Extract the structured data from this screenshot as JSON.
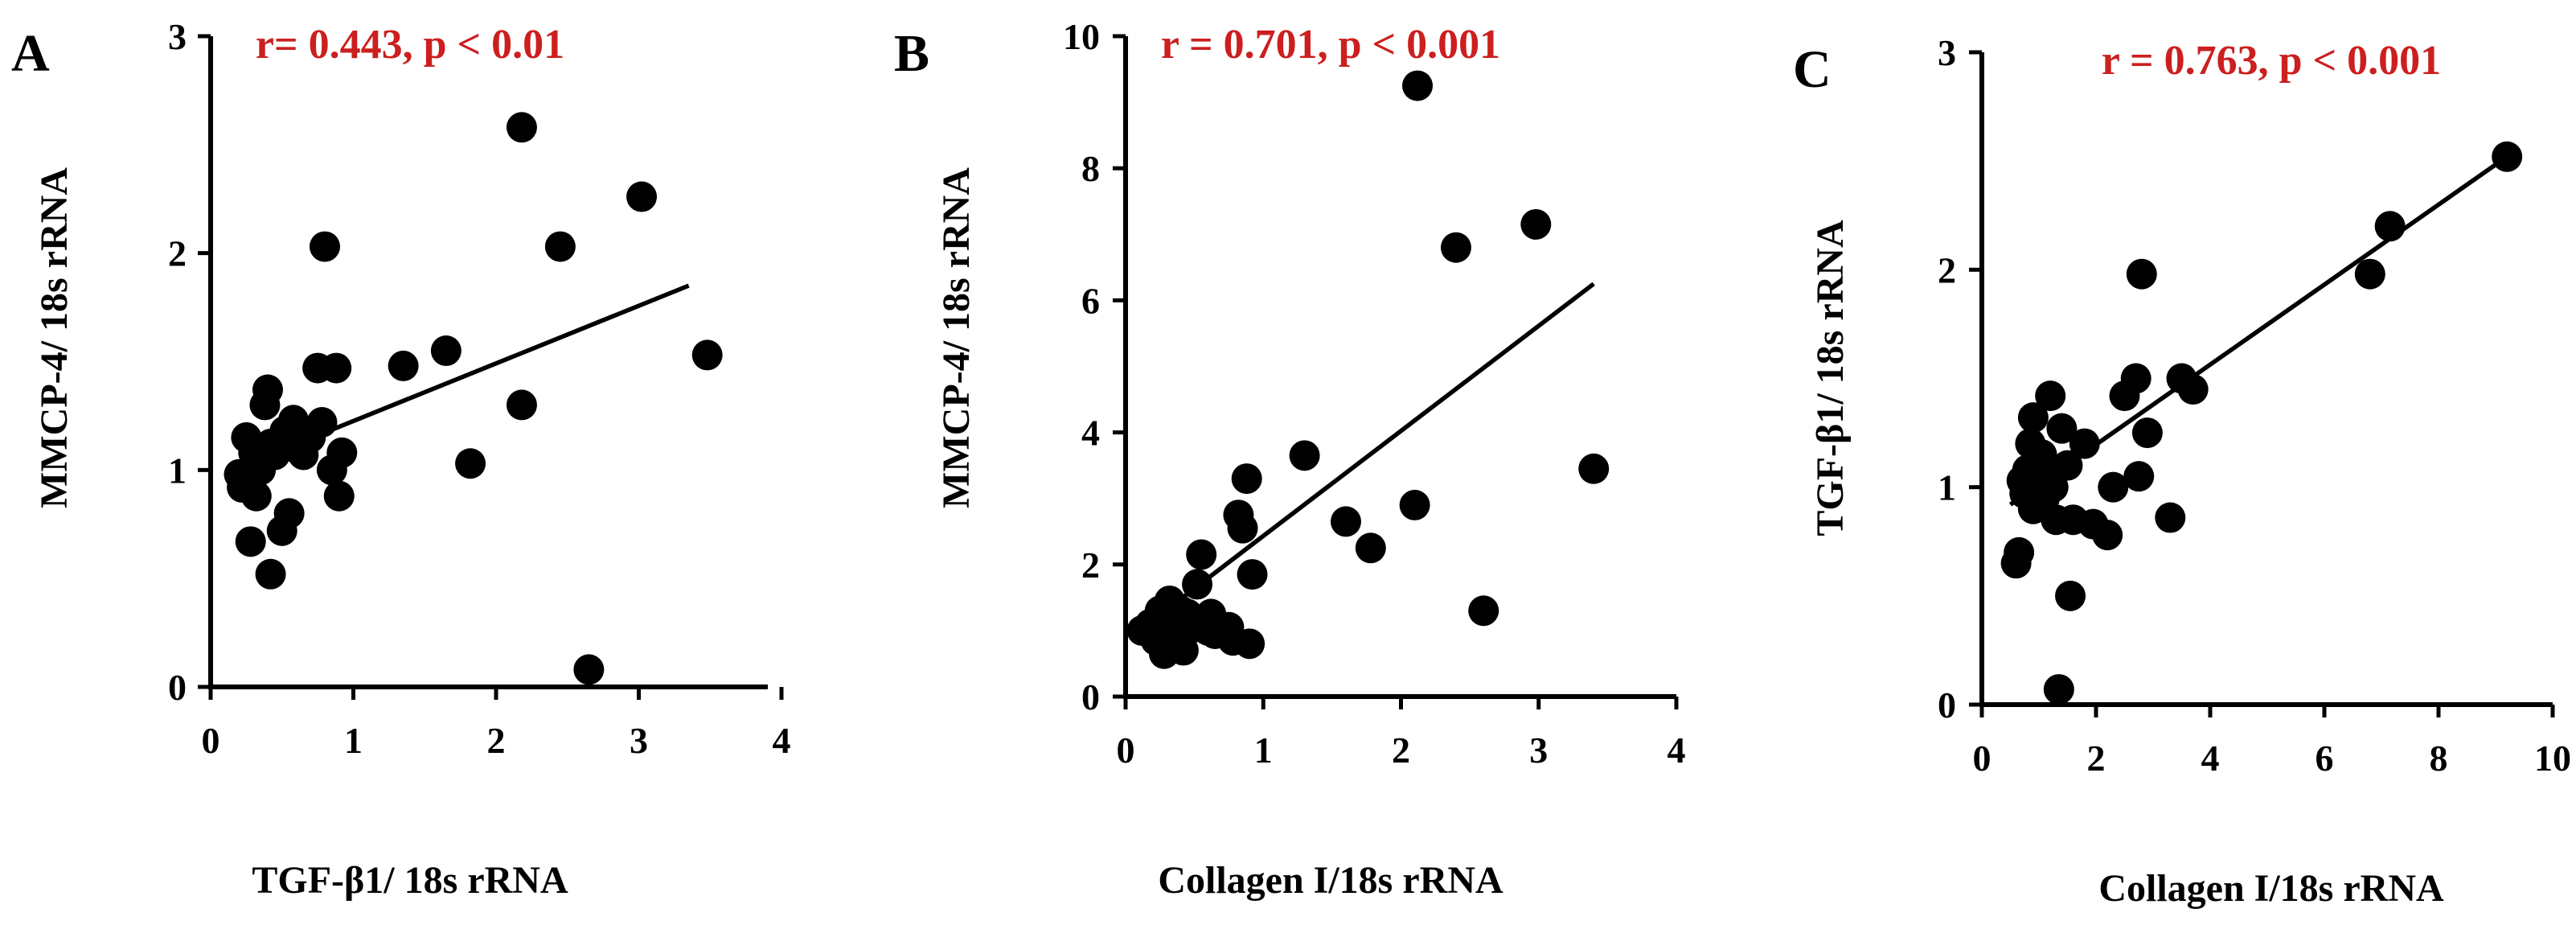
{
  "chart_data": [
    {
      "panel": "A",
      "type": "scatter",
      "stat_text": "r= 0.443, p < 0.01",
      "xlabel": "TGF-β1/ 18s rRNA",
      "ylabel": "MMCP-4/ 18s rRNA",
      "xlim": [
        0,
        4
      ],
      "ylim": [
        0,
        3
      ],
      "xticks": [
        "0",
        "1",
        "2",
        "3",
        "4"
      ],
      "yticks": [
        "0",
        "1",
        "2",
        "3"
      ],
      "xtick_values": [
        0,
        1,
        2,
        3,
        4
      ],
      "ytick_values": [
        0,
        1,
        2,
        3
      ],
      "trendline": [
        [
          0.15,
          1.0
        ],
        [
          3.35,
          1.85
        ]
      ],
      "points": [
        [
          0.2,
          0.98
        ],
        [
          0.22,
          0.92
        ],
        [
          0.25,
          0.96
        ],
        [
          0.25,
          1.15
        ],
        [
          0.28,
          0.67
        ],
        [
          0.3,
          1.08
        ],
        [
          0.32,
          0.88
        ],
        [
          0.35,
          1.0
        ],
        [
          0.38,
          1.3
        ],
        [
          0.4,
          1.37
        ],
        [
          0.42,
          1.12
        ],
        [
          0.42,
          0.52
        ],
        [
          0.45,
          1.07
        ],
        [
          0.5,
          0.72
        ],
        [
          0.52,
          1.18
        ],
        [
          0.55,
          0.8
        ],
        [
          0.58,
          1.23
        ],
        [
          0.6,
          1.1
        ],
        [
          0.65,
          1.07
        ],
        [
          0.7,
          1.15
        ],
        [
          0.75,
          1.47
        ],
        [
          0.78,
          1.22
        ],
        [
          0.8,
          2.03
        ],
        [
          0.85,
          1.0
        ],
        [
          0.88,
          1.47
        ],
        [
          0.9,
          0.88
        ],
        [
          0.92,
          1.08
        ],
        [
          1.35,
          1.48
        ],
        [
          1.65,
          1.55
        ],
        [
          1.82,
          1.03
        ],
        [
          2.18,
          2.58
        ],
        [
          2.18,
          1.3
        ],
        [
          2.45,
          2.03
        ],
        [
          2.65,
          0.08
        ],
        [
          3.02,
          2.26
        ],
        [
          3.48,
          1.53
        ]
      ]
    },
    {
      "panel": "B",
      "type": "scatter",
      "stat_text": "r = 0.701, p < 0.001",
      "xlabel": "Collagen I/18s rRNA",
      "ylabel": "MMCP-4/ 18s rRNA",
      "xlim": [
        0,
        4
      ],
      "ylim": [
        0,
        10
      ],
      "xticks": [
        "0",
        "1",
        "2",
        "3",
        "4"
      ],
      "yticks": [
        "0",
        "2",
        "4",
        "6",
        "8",
        "10"
      ],
      "xtick_values": [
        0,
        1,
        2,
        3,
        4
      ],
      "ytick_values": [
        0,
        2,
        4,
        6,
        8,
        10
      ],
      "trendline": [
        [
          0.1,
          1.0
        ],
        [
          3.4,
          6.25
        ]
      ],
      "points": [
        [
          0.12,
          1.0
        ],
        [
          0.18,
          1.1
        ],
        [
          0.22,
          0.85
        ],
        [
          0.25,
          1.3
        ],
        [
          0.28,
          0.65
        ],
        [
          0.3,
          1.2
        ],
        [
          0.32,
          1.45
        ],
        [
          0.35,
          0.95
        ],
        [
          0.38,
          1.1
        ],
        [
          0.4,
          1.3
        ],
        [
          0.42,
          0.7
        ],
        [
          0.45,
          1.25
        ],
        [
          0.5,
          1.05
        ],
        [
          0.52,
          1.7
        ],
        [
          0.55,
          2.15
        ],
        [
          0.6,
          1.0
        ],
        [
          0.62,
          1.25
        ],
        [
          0.65,
          0.95
        ],
        [
          0.75,
          1.05
        ],
        [
          0.78,
          0.85
        ],
        [
          0.82,
          2.75
        ],
        [
          0.85,
          2.55
        ],
        [
          0.88,
          3.3
        ],
        [
          0.9,
          0.8
        ],
        [
          0.92,
          1.85
        ],
        [
          1.3,
          3.65
        ],
        [
          1.6,
          2.65
        ],
        [
          1.78,
          2.25
        ],
        [
          2.1,
          2.9
        ],
        [
          2.12,
          9.25
        ],
        [
          2.4,
          6.8
        ],
        [
          2.6,
          1.3
        ],
        [
          2.98,
          7.15
        ],
        [
          3.4,
          3.45
        ]
      ]
    },
    {
      "panel": "C",
      "type": "scatter",
      "stat_text": "r = 0.763, p < 0.001",
      "xlabel": "Collagen I/18s rRNA",
      "ylabel": "TGF-β1/ 18s rRNA",
      "xlim": [
        0,
        10
      ],
      "ylim": [
        0,
        3
      ],
      "xticks": [
        "0",
        "2",
        "4",
        "6",
        "8",
        "10"
      ],
      "yticks": [
        "0",
        "1",
        "2",
        "3"
      ],
      "xtick_values": [
        0,
        2,
        4,
        6,
        8,
        10
      ],
      "ytick_values": [
        0,
        1,
        2,
        3
      ],
      "trendline": [
        [
          0.5,
          0.92
        ],
        [
          9.2,
          2.52
        ]
      ],
      "points": [
        [
          0.6,
          0.65
        ],
        [
          0.65,
          0.7
        ],
        [
          0.7,
          1.03
        ],
        [
          0.75,
          0.97
        ],
        [
          0.8,
          1.08
        ],
        [
          0.85,
          1.2
        ],
        [
          0.9,
          0.9
        ],
        [
          0.9,
          1.32
        ],
        [
          0.95,
          1.0
        ],
        [
          1.0,
          1.1
        ],
        [
          1.05,
          1.15
        ],
        [
          1.1,
          0.95
        ],
        [
          1.15,
          1.05
        ],
        [
          1.2,
          1.42
        ],
        [
          1.25,
          1.0
        ],
        [
          1.3,
          0.85
        ],
        [
          1.35,
          0.07
        ],
        [
          1.4,
          1.27
        ],
        [
          1.5,
          1.1
        ],
        [
          1.55,
          0.5
        ],
        [
          1.6,
          0.85
        ],
        [
          1.8,
          1.2
        ],
        [
          1.95,
          0.83
        ],
        [
          2.2,
          0.78
        ],
        [
          2.3,
          1.0
        ],
        [
          2.5,
          1.42
        ],
        [
          2.7,
          1.5
        ],
        [
          2.75,
          1.05
        ],
        [
          2.8,
          1.98
        ],
        [
          2.9,
          1.25
        ],
        [
          3.3,
          0.86
        ],
        [
          3.5,
          1.5
        ],
        [
          3.7,
          1.45
        ],
        [
          6.8,
          1.98
        ],
        [
          7.15,
          2.2
        ],
        [
          9.2,
          2.52
        ]
      ]
    }
  ]
}
